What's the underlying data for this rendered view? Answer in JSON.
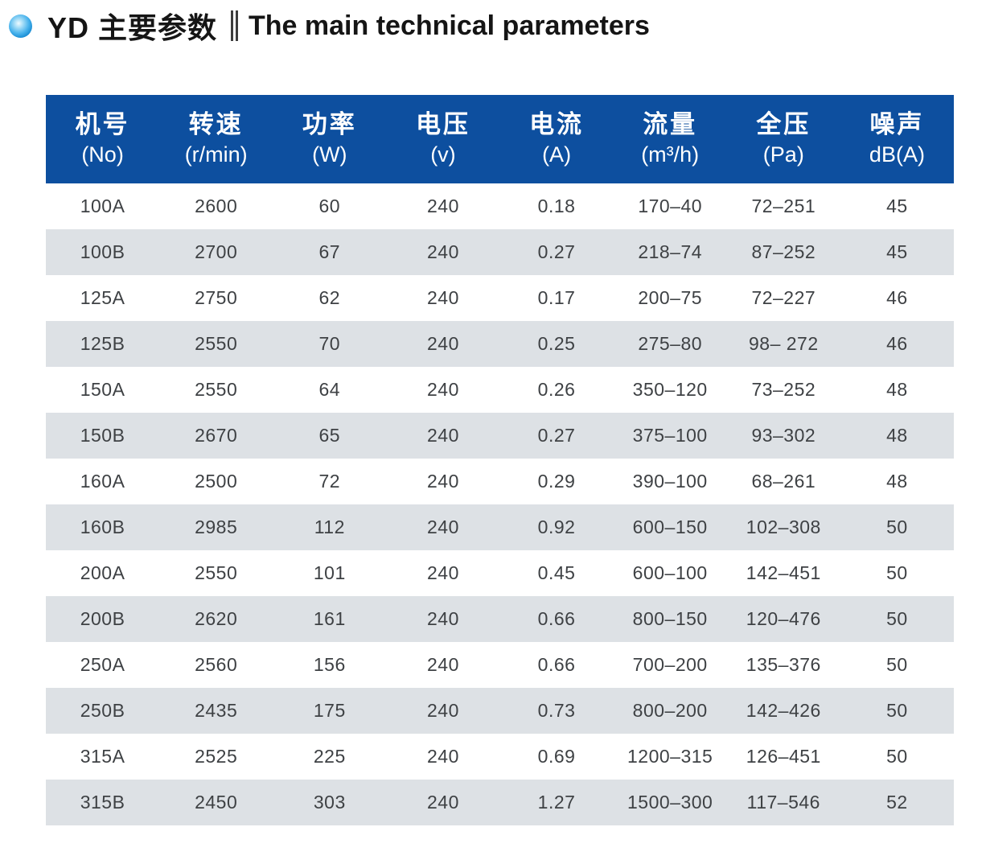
{
  "title": {
    "zh": "YD 主要参数",
    "separator": "‖",
    "en": "The main technical parameters"
  },
  "colors": {
    "header-bg": "#0d4f9f",
    "row-alt": "#dde1e5",
    "cell-text": "#3e4144",
    "title-text": "#151515"
  },
  "icons": {
    "bullet": "blue-sphere-bullet-icon"
  },
  "table": {
    "columns": [
      {
        "zh": "机号",
        "unit": "(No)"
      },
      {
        "zh": "转速",
        "unit": "(r/min)"
      },
      {
        "zh": "功率",
        "unit": "(W)"
      },
      {
        "zh": "电压",
        "unit": "(v)"
      },
      {
        "zh": "电流",
        "unit": "(A)"
      },
      {
        "zh": "流量",
        "unit": "(m³/h)"
      },
      {
        "zh": "全压",
        "unit": "(Pa)"
      },
      {
        "zh": "噪声",
        "unit": "dB(A)"
      }
    ],
    "rows": [
      [
        "100A",
        "2600",
        "60",
        "240",
        "0.18",
        "170–40",
        "72–251",
        "45"
      ],
      [
        "100B",
        "2700",
        "67",
        "240",
        "0.27",
        "218–74",
        "87–252",
        "45"
      ],
      [
        "125A",
        "2750",
        "62",
        "240",
        "0.17",
        "200–75",
        "72–227",
        "46"
      ],
      [
        "125B",
        "2550",
        "70",
        "240",
        "0.25",
        "275–80",
        "98– 272",
        "46"
      ],
      [
        "150A",
        "2550",
        "64",
        "240",
        "0.26",
        "350–120",
        "73–252",
        "48"
      ],
      [
        "150B",
        "2670",
        "65",
        "240",
        "0.27",
        "375–100",
        "93–302",
        "48"
      ],
      [
        "160A",
        "2500",
        "72",
        "240",
        "0.29",
        "390–100",
        "68–261",
        "48"
      ],
      [
        "160B",
        "2985",
        "112",
        "240",
        "0.92",
        "600–150",
        "102–308",
        "50"
      ],
      [
        "200A",
        "2550",
        "101",
        "240",
        "0.45",
        "600–100",
        "142–451",
        "50"
      ],
      [
        "200B",
        "2620",
        "161",
        "240",
        "0.66",
        "800–150",
        "120–476",
        "50"
      ],
      [
        "250A",
        "2560",
        "156",
        "240",
        "0.66",
        "700–200",
        "135–376",
        "50"
      ],
      [
        "250B",
        "2435",
        "175",
        "240",
        "0.73",
        "800–200",
        "142–426",
        "50"
      ],
      [
        "315A",
        "2525",
        "225",
        "240",
        "0.69",
        "1200–315",
        "126–451",
        "50"
      ],
      [
        "315B",
        "2450",
        "303",
        "240",
        "1.27",
        "1500–300",
        "117–546",
        "52"
      ]
    ]
  }
}
